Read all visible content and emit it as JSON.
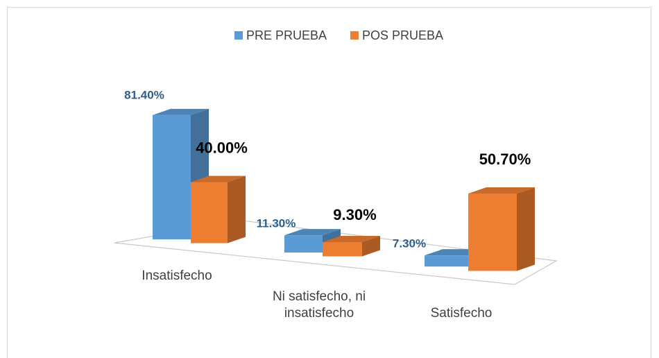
{
  "chart_data": {
    "type": "bar3d",
    "categories": [
      "Insatisfecho",
      "Ni satisfecho, ni insatisfecho",
      "Satisfecho"
    ],
    "series": [
      {
        "name": "PRE PRUEBA",
        "color": "#5b9bd5",
        "values": [
          81.4,
          11.3,
          7.3
        ],
        "value_labels": [
          "81.40%",
          "11.30%",
          "7.30%"
        ]
      },
      {
        "name": "POS PRUEBA",
        "color": "#ed7d31",
        "values": [
          40,
          9.3,
          50.7
        ],
        "value_labels": [
          "40.00%",
          "9.30%",
          "50.70%"
        ]
      }
    ],
    "legend": "top"
  }
}
